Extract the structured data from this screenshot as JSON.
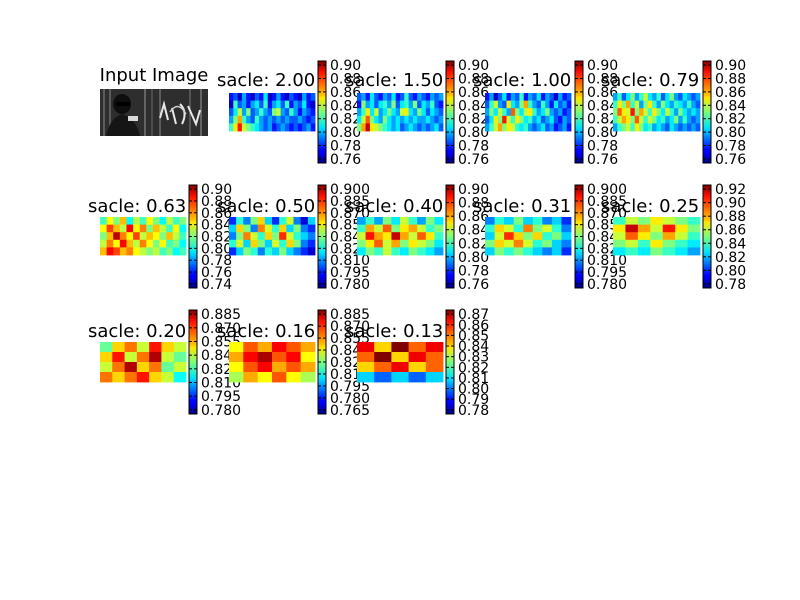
{
  "input_title": "Input Image",
  "colormap": "jet",
  "chart_data": [
    {
      "type": "heatmap",
      "title": "sacle: 2.00",
      "colorbar_ticks": [
        "0.90",
        "0.88",
        "0.86",
        "0.84",
        "0.82",
        "0.80",
        "0.78",
        "0.76"
      ],
      "data": [
        [
          0.78,
          0.79,
          0.77,
          0.8,
          0.78,
          0.77,
          0.79,
          0.78,
          0.81,
          0.77,
          0.78,
          0.8,
          0.78,
          0.77,
          0.79,
          0.78,
          0.77,
          0.8,
          0.78,
          0.79
        ],
        [
          0.77,
          0.82,
          0.79,
          0.8,
          0.78,
          0.8,
          0.81,
          0.79,
          0.82,
          0.78,
          0.8,
          0.81,
          0.79,
          0.82,
          0.78,
          0.8,
          0.79,
          0.81,
          0.78,
          0.77
        ],
        [
          0.79,
          0.81,
          0.84,
          0.8,
          0.83,
          0.79,
          0.8,
          0.82,
          0.8,
          0.79,
          0.83,
          0.84,
          0.8,
          0.79,
          0.82,
          0.8,
          0.78,
          0.8,
          0.79,
          0.78
        ],
        [
          0.8,
          0.83,
          0.86,
          0.82,
          0.8,
          0.79,
          0.82,
          0.8,
          0.79,
          0.8,
          0.79,
          0.8,
          0.79,
          0.8,
          0.79,
          0.79,
          0.8,
          0.79,
          0.78,
          0.79
        ],
        [
          0.82,
          0.85,
          0.88,
          0.84,
          0.83,
          0.82,
          0.81,
          0.8,
          0.79,
          0.8,
          0.78,
          0.79,
          0.8,
          0.79,
          0.78,
          0.79,
          0.78,
          0.79,
          0.8,
          0.78
        ]
      ]
    },
    {
      "type": "heatmap",
      "title": "sacle: 1.50",
      "colorbar_ticks": [
        "0.90",
        "0.88",
        "0.86",
        "0.84",
        "0.82",
        "0.80",
        "0.78",
        "0.76"
      ],
      "data": [
        [
          0.79,
          0.8,
          0.78,
          0.81,
          0.79,
          0.78,
          0.8,
          0.79,
          0.81,
          0.78,
          0.79,
          0.82,
          0.79,
          0.78,
          0.8,
          0.79,
          0.78,
          0.8,
          0.79,
          0.8
        ],
        [
          0.78,
          0.83,
          0.8,
          0.81,
          0.79,
          0.81,
          0.82,
          0.8,
          0.83,
          0.79,
          0.81,
          0.82,
          0.8,
          0.83,
          0.79,
          0.81,
          0.8,
          0.82,
          0.79,
          0.78
        ],
        [
          0.8,
          0.82,
          0.85,
          0.81,
          0.84,
          0.8,
          0.81,
          0.83,
          0.81,
          0.8,
          0.84,
          0.85,
          0.81,
          0.8,
          0.83,
          0.81,
          0.79,
          0.81,
          0.8,
          0.79
        ],
        [
          0.81,
          0.84,
          0.87,
          0.83,
          0.81,
          0.8,
          0.83,
          0.81,
          0.8,
          0.81,
          0.8,
          0.81,
          0.8,
          0.81,
          0.8,
          0.8,
          0.81,
          0.8,
          0.79,
          0.8
        ],
        [
          0.83,
          0.86,
          0.89,
          0.85,
          0.84,
          0.83,
          0.82,
          0.81,
          0.8,
          0.81,
          0.79,
          0.8,
          0.81,
          0.8,
          0.79,
          0.8,
          0.79,
          0.8,
          0.81,
          0.79
        ]
      ]
    },
    {
      "type": "heatmap",
      "title": "sacle: 1.00",
      "colorbar_ticks": [
        "0.90",
        "0.88",
        "0.86",
        "0.84",
        "0.82",
        "0.80",
        "0.78",
        "0.76"
      ],
      "data": [
        [
          0.78,
          0.8,
          0.77,
          0.79,
          0.81,
          0.78,
          0.8,
          0.79,
          0.82,
          0.78,
          0.8,
          0.79,
          0.81,
          0.78,
          0.8,
          0.79,
          0.77,
          0.8,
          0.78,
          0.79
        ],
        [
          0.79,
          0.82,
          0.84,
          0.8,
          0.79,
          0.85,
          0.81,
          0.8,
          0.83,
          0.86,
          0.82,
          0.8,
          0.79,
          0.82,
          0.8,
          0.78,
          0.81,
          0.79,
          0.8,
          0.78
        ],
        [
          0.8,
          0.83,
          0.81,
          0.84,
          0.82,
          0.8,
          0.87,
          0.83,
          0.81,
          0.84,
          0.85,
          0.82,
          0.8,
          0.81,
          0.83,
          0.8,
          0.79,
          0.8,
          0.78,
          0.79
        ],
        [
          0.79,
          0.81,
          0.85,
          0.83,
          0.88,
          0.84,
          0.82,
          0.85,
          0.83,
          0.81,
          0.82,
          0.8,
          0.81,
          0.79,
          0.8,
          0.81,
          0.79,
          0.78,
          0.8,
          0.79
        ],
        [
          0.8,
          0.82,
          0.84,
          0.86,
          0.83,
          0.85,
          0.84,
          0.82,
          0.81,
          0.82,
          0.8,
          0.79,
          0.8,
          0.81,
          0.79,
          0.8,
          0.78,
          0.79,
          0.8,
          0.78
        ]
      ]
    },
    {
      "type": "heatmap",
      "title": "sacle: 0.79",
      "colorbar_ticks": [
        "0.90",
        "0.88",
        "0.86",
        "0.84",
        "0.82",
        "0.80",
        "0.78",
        "0.76"
      ],
      "data": [
        [
          0.8,
          0.82,
          0.79,
          0.81,
          0.83,
          0.8,
          0.82,
          0.84,
          0.81,
          0.8,
          0.82,
          0.79,
          0.81,
          0.83,
          0.8,
          0.79,
          0.81,
          0.8,
          0.79,
          0.8
        ],
        [
          0.82,
          0.85,
          0.83,
          0.86,
          0.82,
          0.84,
          0.8,
          0.83,
          0.85,
          0.82,
          0.8,
          0.83,
          0.81,
          0.8,
          0.82,
          0.81,
          0.8,
          0.82,
          0.8,
          0.79
        ],
        [
          0.83,
          0.87,
          0.85,
          0.84,
          0.88,
          0.83,
          0.86,
          0.84,
          0.82,
          0.85,
          0.83,
          0.81,
          0.84,
          0.82,
          0.8,
          0.83,
          0.81,
          0.8,
          0.81,
          0.8
        ],
        [
          0.82,
          0.84,
          0.86,
          0.85,
          0.83,
          0.87,
          0.84,
          0.82,
          0.84,
          0.83,
          0.81,
          0.82,
          0.8,
          0.81,
          0.83,
          0.8,
          0.82,
          0.8,
          0.79,
          0.8
        ],
        [
          0.8,
          0.82,
          0.83,
          0.84,
          0.82,
          0.85,
          0.83,
          0.81,
          0.82,
          0.8,
          0.81,
          0.8,
          0.79,
          0.81,
          0.8,
          0.79,
          0.8,
          0.79,
          0.8,
          0.79
        ]
      ]
    },
    {
      "type": "heatmap",
      "title": "sacle: 0.63",
      "colorbar_ticks": [
        "0.90",
        "0.88",
        "0.86",
        "0.84",
        "0.82",
        "0.80",
        "0.78",
        "0.76",
        "0.74"
      ],
      "data": [
        [
          0.81,
          0.84,
          0.82,
          0.85,
          0.8,
          0.83,
          0.81,
          0.84,
          0.82,
          0.8,
          0.83,
          0.81,
          0.82
        ],
        [
          0.84,
          0.87,
          0.85,
          0.83,
          0.88,
          0.84,
          0.86,
          0.82,
          0.85,
          0.83,
          0.81,
          0.84,
          0.8
        ],
        [
          0.82,
          0.85,
          0.89,
          0.86,
          0.84,
          0.87,
          0.83,
          0.85,
          0.84,
          0.82,
          0.85,
          0.83,
          0.81
        ],
        [
          0.83,
          0.86,
          0.84,
          0.88,
          0.85,
          0.83,
          0.86,
          0.84,
          0.82,
          0.84,
          0.81,
          0.82,
          0.8
        ],
        [
          0.85,
          0.88,
          0.87,
          0.85,
          0.86,
          0.84,
          0.83,
          0.82,
          0.83,
          0.81,
          0.82,
          0.8,
          0.81
        ]
      ]
    },
    {
      "type": "heatmap",
      "title": "sacle: 0.50",
      "colorbar_ticks": [
        "0.900",
        "0.885",
        "0.870",
        "0.855",
        "0.840",
        "0.825",
        "0.810",
        "0.795",
        "0.780"
      ],
      "data": [
        [
          0.8,
          0.83,
          0.81,
          0.84,
          0.86,
          0.82,
          0.8,
          0.83,
          0.85,
          0.81,
          0.79,
          0.82
        ],
        [
          0.82,
          0.86,
          0.84,
          0.81,
          0.87,
          0.85,
          0.83,
          0.86,
          0.82,
          0.84,
          0.81,
          0.8
        ],
        [
          0.81,
          0.84,
          0.87,
          0.85,
          0.83,
          0.86,
          0.84,
          0.88,
          0.85,
          0.83,
          0.82,
          0.81
        ],
        [
          0.83,
          0.85,
          0.82,
          0.86,
          0.84,
          0.82,
          0.85,
          0.83,
          0.86,
          0.84,
          0.81,
          0.8
        ],
        [
          0.8,
          0.82,
          0.84,
          0.83,
          0.81,
          0.83,
          0.82,
          0.84,
          0.82,
          0.81,
          0.8,
          0.79
        ]
      ]
    },
    {
      "type": "heatmap",
      "title": "sacle: 0.40",
      "colorbar_ticks": [
        "0.90",
        "0.88",
        "0.86",
        "0.84",
        "0.82",
        "0.80",
        "0.78",
        "0.76"
      ],
      "data": [
        [
          0.8,
          0.82,
          0.8,
          0.83,
          0.81,
          0.84,
          0.82,
          0.8,
          0.83,
          0.81
        ],
        [
          0.82,
          0.86,
          0.84,
          0.87,
          0.83,
          0.85,
          0.86,
          0.84,
          0.82,
          0.83
        ],
        [
          0.84,
          0.88,
          0.86,
          0.85,
          0.89,
          0.86,
          0.84,
          0.87,
          0.85,
          0.82
        ],
        [
          0.83,
          0.85,
          0.87,
          0.84,
          0.86,
          0.83,
          0.85,
          0.84,
          0.83,
          0.81
        ],
        [
          0.81,
          0.83,
          0.82,
          0.84,
          0.82,
          0.81,
          0.83,
          0.82,
          0.81,
          0.8
        ]
      ]
    },
    {
      "type": "heatmap",
      "title": "sacle: 0.31",
      "colorbar_ticks": [
        "0.900",
        "0.885",
        "0.870",
        "0.855",
        "0.840",
        "0.825",
        "0.810",
        "0.795",
        "0.780"
      ],
      "data": [
        [
          0.81,
          0.83,
          0.82,
          0.84,
          0.82,
          0.83,
          0.81,
          0.82,
          0.8
        ],
        [
          0.83,
          0.86,
          0.85,
          0.83,
          0.87,
          0.84,
          0.85,
          0.83,
          0.81
        ],
        [
          0.82,
          0.85,
          0.88,
          0.86,
          0.84,
          0.86,
          0.83,
          0.84,
          0.82
        ],
        [
          0.84,
          0.86,
          0.85,
          0.87,
          0.85,
          0.83,
          0.84,
          0.82,
          0.81
        ],
        [
          0.82,
          0.84,
          0.83,
          0.84,
          0.83,
          0.82,
          0.81,
          0.82,
          0.8
        ]
      ]
    },
    {
      "type": "heatmap",
      "title": "sacle: 0.25",
      "colorbar_ticks": [
        "0.92",
        "0.90",
        "0.88",
        "0.86",
        "0.84",
        "0.82",
        "0.80",
        "0.78"
      ],
      "data": [
        [
          0.84,
          0.86,
          0.85,
          0.87,
          0.86,
          0.85,
          0.84
        ],
        [
          0.87,
          0.91,
          0.88,
          0.86,
          0.9,
          0.87,
          0.85
        ],
        [
          0.86,
          0.89,
          0.87,
          0.85,
          0.88,
          0.86,
          0.84
        ],
        [
          0.85,
          0.86,
          0.84,
          0.87,
          0.85,
          0.84,
          0.83
        ],
        [
          0.83,
          0.84,
          0.83,
          0.85,
          0.84,
          0.83,
          0.82
        ]
      ]
    },
    {
      "type": "heatmap",
      "title": "sacle: 0.20",
      "colorbar_ticks": [
        "0.885",
        "0.870",
        "0.855",
        "0.840",
        "0.825",
        "0.810",
        "0.795",
        "0.780"
      ],
      "data": [
        [
          0.83,
          0.85,
          0.86,
          0.84,
          0.87,
          0.85,
          0.84
        ],
        [
          0.85,
          0.87,
          0.84,
          0.86,
          0.88,
          0.84,
          0.83
        ],
        [
          0.84,
          0.86,
          0.88,
          0.85,
          0.86,
          0.83,
          0.84
        ],
        [
          0.86,
          0.85,
          0.86,
          0.87,
          0.85,
          0.84,
          0.82
        ]
      ]
    },
    {
      "type": "heatmap",
      "title": "sacle: 0.16",
      "colorbar_ticks": [
        "0.885",
        "0.870",
        "0.855",
        "0.840",
        "0.825",
        "0.810",
        "0.795",
        "0.780",
        "0.765"
      ],
      "data": [
        [
          0.84,
          0.86,
          0.85,
          0.87,
          0.86,
          0.85
        ],
        [
          0.85,
          0.87,
          0.88,
          0.86,
          0.87,
          0.84
        ],
        [
          0.84,
          0.86,
          0.87,
          0.85,
          0.86,
          0.85
        ],
        [
          0.83,
          0.85,
          0.84,
          0.86,
          0.84,
          0.83
        ]
      ]
    },
    {
      "type": "heatmap",
      "title": "sacle: 0.13",
      "colorbar_ticks": [
        "0.87",
        "0.86",
        "0.85",
        "0.84",
        "0.83",
        "0.82",
        "0.81",
        "0.80",
        "0.79",
        "0.78"
      ],
      "data": [
        [
          0.86,
          0.84,
          0.87,
          0.85,
          0.86
        ],
        [
          0.85,
          0.87,
          0.84,
          0.86,
          0.85
        ],
        [
          0.84,
          0.85,
          0.86,
          0.84,
          0.85
        ],
        [
          0.81,
          0.8,
          0.81,
          0.8,
          0.81
        ]
      ]
    }
  ]
}
